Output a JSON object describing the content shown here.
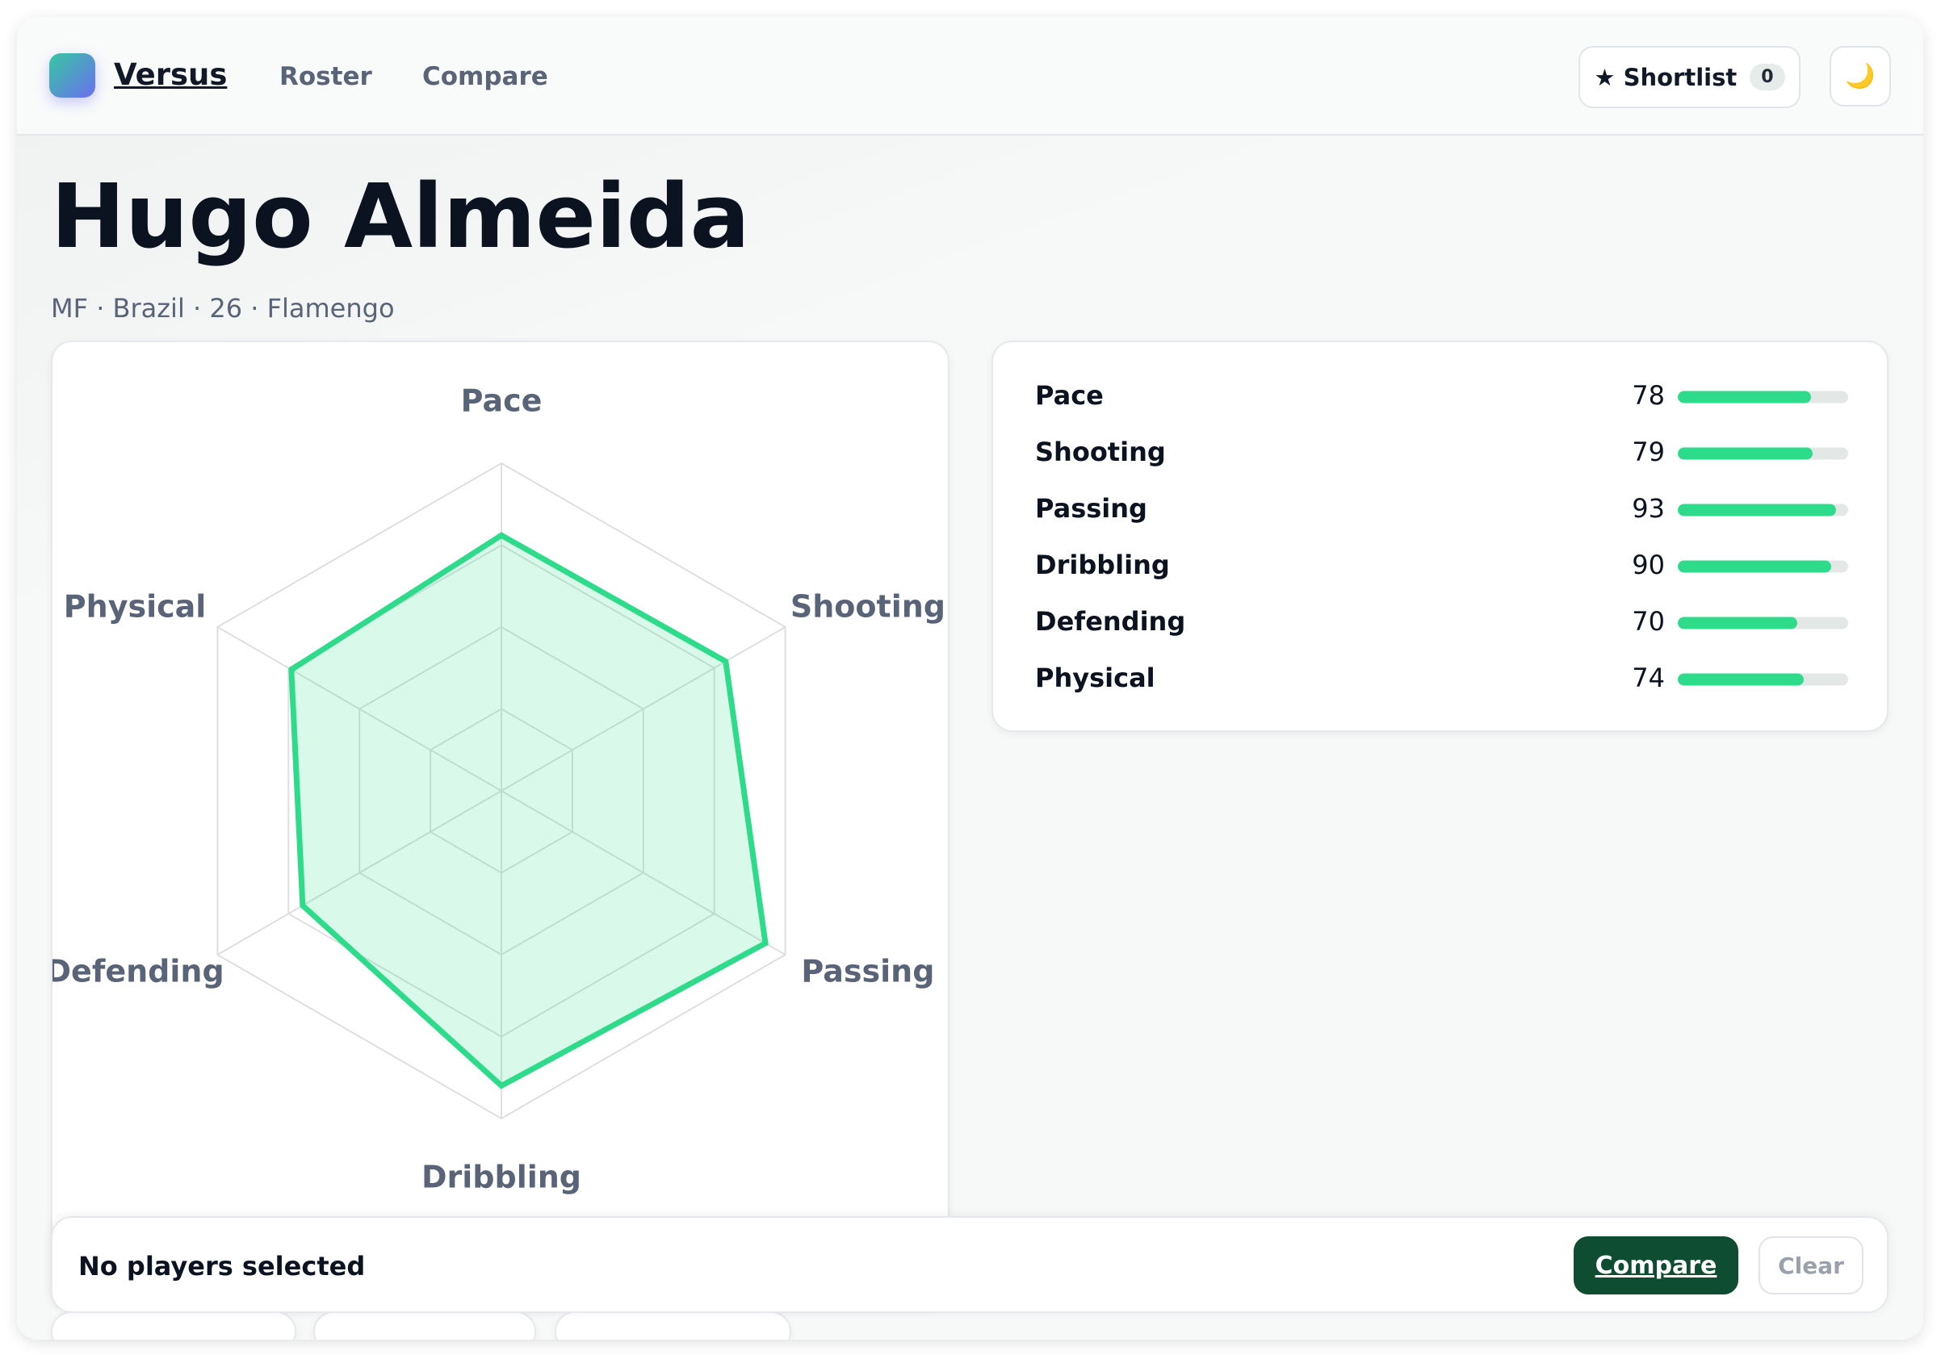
{
  "nav": {
    "brand": "Versus",
    "links": [
      "Roster",
      "Compare"
    ],
    "shortlist": "★ Shortlist",
    "shortlist_count": 0,
    "theme_icon": "🌙"
  },
  "player": {
    "name": "Hugo Almeida",
    "meta": "MF · Brazil · 26 · Flamengo"
  },
  "chart_data": {
    "type": "radar",
    "categories": [
      "Pace",
      "Shooting",
      "Passing",
      "Dribbling",
      "Defending",
      "Physical"
    ],
    "values": [
      78,
      79,
      93,
      90,
      70,
      74
    ],
    "color": "#2edb8a",
    "rlim": [
      0,
      100
    ],
    "rticks": [
      25,
      50,
      75,
      100
    ]
  },
  "footer": {
    "status": "No players selected",
    "compare": "Compare",
    "clear": "Clear"
  }
}
